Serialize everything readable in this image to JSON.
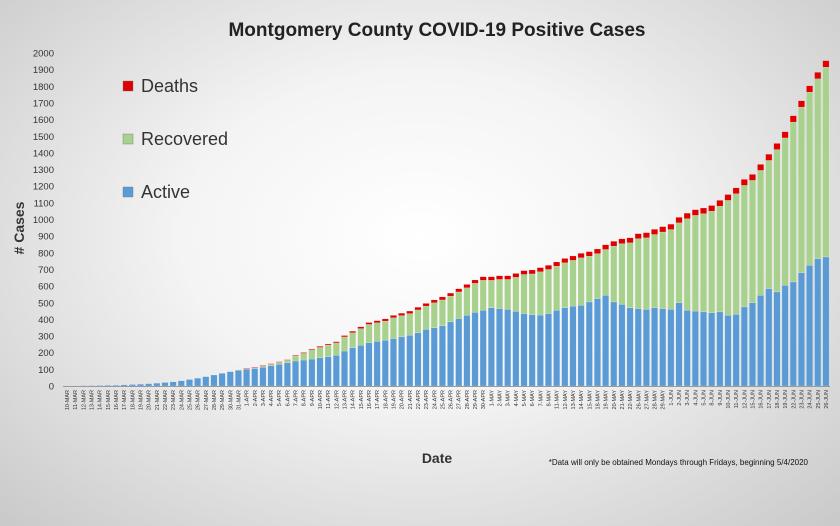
{
  "chart_data": {
    "type": "bar",
    "stacked": true,
    "title": "Montgomery County COVID-19 Positive Cases",
    "xlabel": "Date",
    "ylabel": "# Cases",
    "ylim": [
      0,
      2000
    ],
    "ytick_step": 100,
    "grid": false,
    "legend_position": "top-left",
    "footnote": "*Data will only be obtained Mondays through Fridays, beginning 5/4/2020",
    "categories": [
      "10-MAR",
      "11-MAR",
      "12-MAR",
      "13-MAR",
      "14-MAR",
      "15-MAR",
      "16-MAR",
      "17-MAR",
      "18-MAR",
      "19-MAR",
      "20-MAR",
      "21-MAR",
      "22-MAR",
      "23-MAR",
      "24-MAR",
      "25-MAR",
      "26-MAR",
      "27-MAR",
      "28-MAR",
      "29-MAR",
      "30-MAR",
      "31-MAR",
      "1-APR",
      "2-APR",
      "3-APR",
      "4-APR",
      "5-APR",
      "6-APR",
      "7-APR",
      "8-APR",
      "9-APR",
      "10-APR",
      "11-APR",
      "12-APR",
      "13-APR",
      "14-APR",
      "15-APR",
      "16-APR",
      "17-APR",
      "18-APR",
      "19-APR",
      "20-APR",
      "21-APR",
      "22-APR",
      "23-APR",
      "24-APR",
      "25-APR",
      "26-APR",
      "27-APR",
      "28-APR",
      "29-APR",
      "30-APR",
      "1-MAY",
      "2-MAY",
      "3-MAY",
      "4-MAY",
      "5-MAY",
      "6-MAY",
      "7-MAY",
      "8-MAY",
      "11-MAY",
      "12-MAY",
      "13-MAY",
      "14-MAY",
      "15-MAY",
      "18-MAY",
      "19-MAY",
      "20-MAY",
      "21-MAY",
      "22-MAY",
      "26-MAY",
      "27-MAY",
      "28-MAY",
      "29-MAY",
      "1-JUN",
      "2-JUN",
      "3-JUN",
      "4-JUN",
      "5-JUN",
      "8-JUN",
      "9-JUN",
      "10-JUN",
      "11-JUN",
      "12-JUN",
      "15-JUN",
      "16-JUN",
      "17-JUN",
      "18-JUN",
      "19-JUN",
      "22-JUN",
      "23-JUN",
      "24-JUN",
      "25-JUN",
      "26-JUN"
    ],
    "series": [
      {
        "name": "Active",
        "color": "#5b9bd5",
        "values": [
          1,
          1,
          2,
          2,
          3,
          4,
          5,
          7,
          9,
          11,
          14,
          17,
          21,
          25,
          31,
          39,
          47,
          56,
          66,
          76,
          86,
          95,
          100,
          105,
          113,
          122,
          131,
          140,
          150,
          156,
          162,
          170,
          176,
          185,
          210,
          230,
          245,
          260,
          268,
          275,
          285,
          295,
          305,
          320,
          340,
          350,
          362,
          385,
          405,
          425,
          442,
          455,
          470,
          465,
          460,
          448,
          435,
          428,
          426,
          435,
          455,
          470,
          480,
          485,
          505,
          525,
          545,
          505,
          490,
          470,
          465,
          460,
          470,
          465,
          460,
          500,
          455,
          450,
          445,
          440,
          445,
          425,
          430,
          475,
          500,
          545,
          585,
          565,
          605,
          625,
          680,
          725,
          765,
          775
        ]
      },
      {
        "name": "Recovered",
        "color": "#a9d18e",
        "values": [
          0,
          0,
          0,
          0,
          0,
          0,
          0,
          0,
          0,
          0,
          0,
          0,
          0,
          0,
          0,
          0,
          0,
          0,
          0,
          0,
          0,
          2,
          4,
          6,
          8,
          10,
          12,
          15,
          30,
          40,
          55,
          62,
          70,
          74,
          85,
          90,
          100,
          110,
          112,
          115,
          125,
          128,
          130,
          137,
          140,
          150,
          155,
          155,
          160,
          165,
          175,
          180,
          165,
          175,
          180,
          205,
          235,
          245,
          260,
          265,
          265,
          270,
          275,
          285,
          275,
          270,
          275,
          335,
          365,
          390,
          420,
          430,
          440,
          460,
          480,
          480,
          550,
          575,
          590,
          610,
          635,
          690,
          725,
          730,
          735,
          750,
          770,
          855,
          885,
          960,
          995,
          1040,
          1080,
          1140
        ]
      },
      {
        "name": "Deaths",
        "color": "#e00000",
        "values": [
          0,
          0,
          0,
          0,
          0,
          0,
          0,
          0,
          0,
          0,
          0,
          0,
          0,
          0,
          0,
          0,
          0,
          0,
          0,
          0,
          0,
          0,
          1,
          1,
          2,
          2,
          3,
          3,
          4,
          5,
          5,
          6,
          6,
          7,
          8,
          9,
          10,
          11,
          12,
          13,
          14,
          14,
          15,
          16,
          16,
          17,
          18,
          18,
          19,
          20,
          20,
          21,
          21,
          22,
          22,
          23,
          23,
          24,
          25,
          25,
          25,
          26,
          26,
          27,
          27,
          28,
          28,
          29,
          29,
          30,
          30,
          31,
          31,
          32,
          32,
          33,
          33,
          34,
          34,
          34,
          35,
          35,
          35,
          36,
          36,
          36,
          37,
          37,
          37,
          38,
          38,
          38,
          39,
          39
        ]
      }
    ]
  }
}
